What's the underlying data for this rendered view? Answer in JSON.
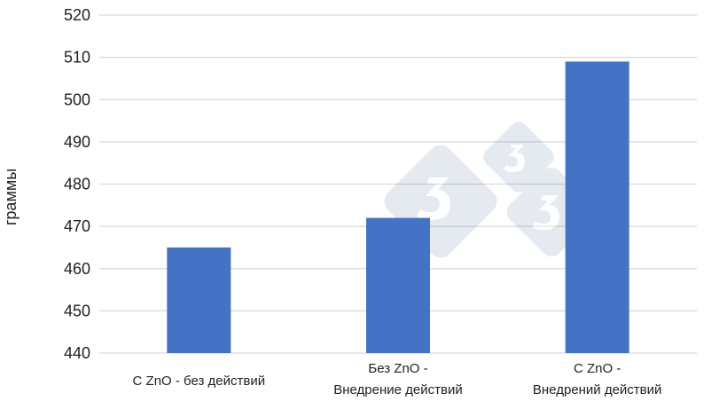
{
  "chart_data": {
    "type": "bar",
    "title": "",
    "xlabel": "",
    "ylabel": "граммы",
    "ylim": [
      440,
      520
    ],
    "y_ticks": [
      440,
      450,
      460,
      470,
      480,
      490,
      500,
      510,
      520
    ],
    "grid": true,
    "legend": "none",
    "categories": [
      [
        "С ZnO - без действий"
      ],
      [
        "Без ZnO -",
        "Внедрение действий"
      ],
      [
        "С ZnO -",
        "Внедрений действий"
      ]
    ],
    "values": [
      465,
      472,
      509
    ],
    "bar_color": "#4472c4"
  }
}
